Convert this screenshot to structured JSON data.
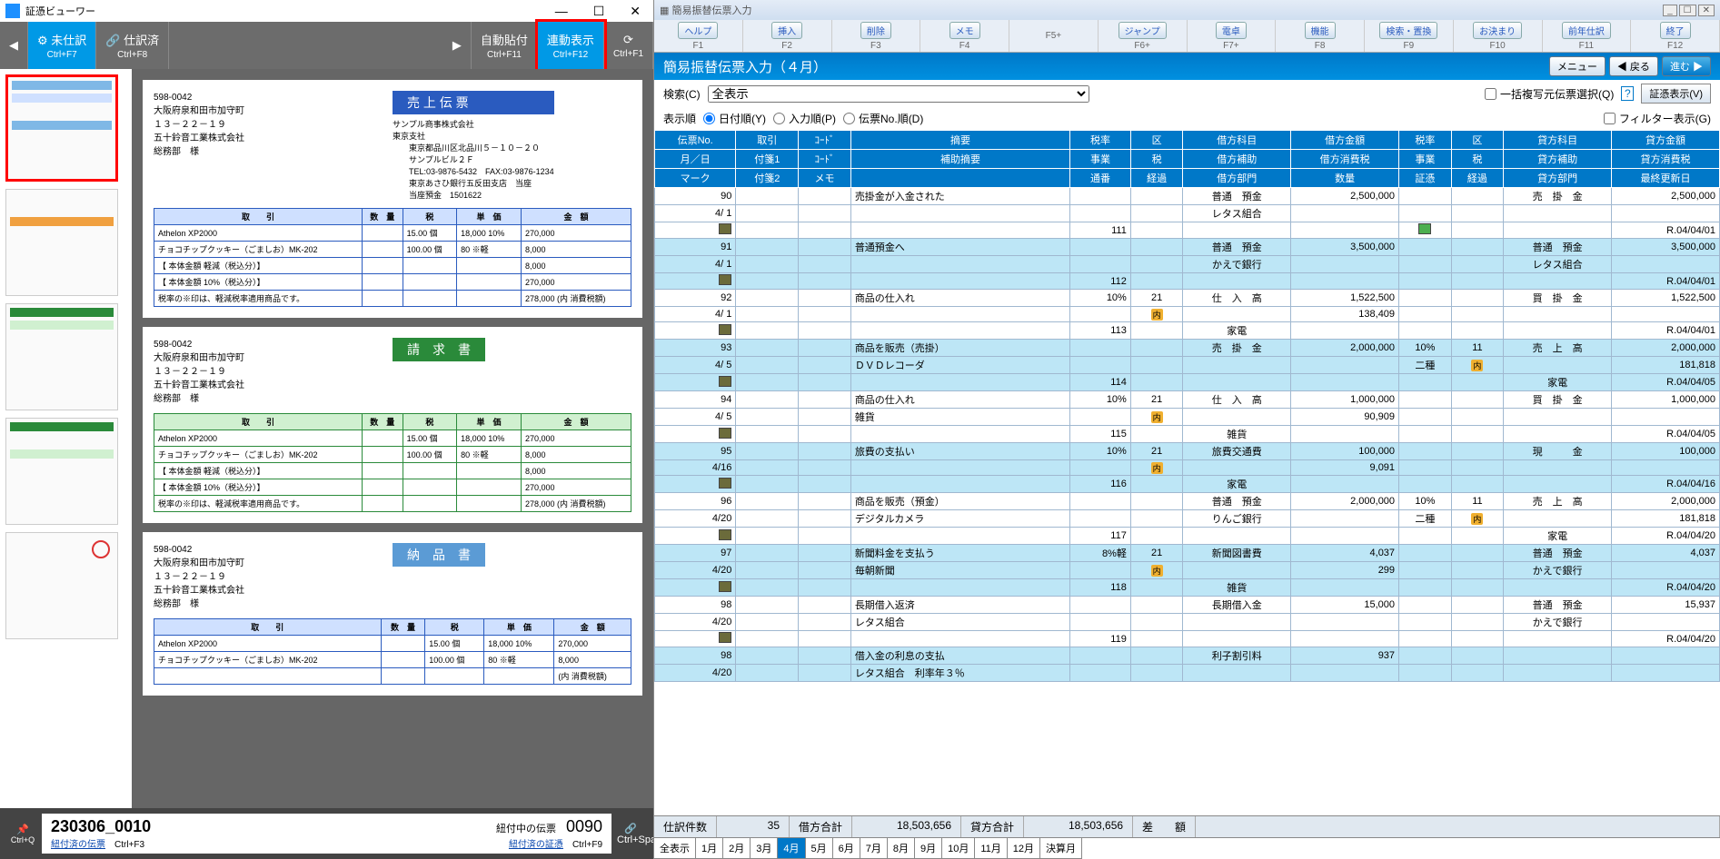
{
  "viewer": {
    "title": "証憑ビューワー",
    "tabs": {
      "unposted": "未仕訳",
      "unposted_key": "Ctrl+F7",
      "posted": "仕訳済",
      "posted_key": "Ctrl+F8"
    },
    "tools": {
      "autopaste": "自動貼付",
      "autopaste_key": "Ctrl+F11",
      "linked": "連動表示",
      "linked_key": "Ctrl+F12",
      "refresh": "⟳",
      "refresh_key": "Ctrl+F1"
    },
    "docs": [
      {
        "title": "売 上 伝 票",
        "color": "blue",
        "zip": "598-0042",
        "addr": "大阪府泉和田市加守町\n１３－２２－１９\n五十鈴音工業株式会社\n総務部　様",
        "from": "サンプル商事株式会社\n東京支社\n　　東京都品川区北品川５－１０－２０\n　　サンプルビル２Ｆ\n　　TEL:03-9876-5432　FAX:03-9876-1234\n　　東京あさひ銀行五反田支店　当座\n　　当座預金　1501622",
        "rows": [
          [
            "Athelon XP2000",
            "",
            "15.00 個",
            "18,000 10%",
            "270,000"
          ],
          [
            "チョコチップクッキー（ごましお）MK-202",
            "",
            "100.00 個",
            "80 ※軽",
            "8,000"
          ],
          [
            "【 本体金額 軽減（税込分）】",
            "",
            "",
            "",
            "8,000"
          ],
          [
            "【 本体金額 10%（税込分）】",
            "",
            "",
            "",
            "270,000"
          ],
          [
            "税率の※印は、軽減税率適用商品です。",
            "",
            "",
            "",
            "278,000 (内 消費税額)"
          ]
        ]
      },
      {
        "title": "請　求　書",
        "color": "green",
        "zip": "598-0042",
        "addr": "大阪府泉和田市加守町\n１３－２２－１９\n五十鈴音工業株式会社\n総務部　様",
        "rows": [
          [
            "Athelon XP2000",
            "",
            "15.00 個",
            "18,000 10%",
            "270,000"
          ],
          [
            "チョコチップクッキー（ごましお）MK-202",
            "",
            "100.00 個",
            "80 ※軽",
            "8,000"
          ],
          [
            "【 本体金額 軽減（税込分）】",
            "",
            "",
            "",
            "8,000"
          ],
          [
            "【 本体金額 10%（税込分）】",
            "",
            "",
            "",
            "270,000"
          ],
          [
            "税率の※印は、軽減税率適用商品です。",
            "",
            "",
            "",
            "278,000 (内 消費税額)"
          ]
        ]
      },
      {
        "title": "納　品　書",
        "color": "blue2",
        "zip": "598-0042",
        "addr": "大阪府泉和田市加守町\n１３－２２－１９\n五十鈴音工業株式会社\n総務部　様",
        "rows": [
          [
            "Athelon XP2000",
            "",
            "15.00 個",
            "18,000 10%",
            "270,000"
          ],
          [
            "チョコチップクッキー（ごましお）MK-202",
            "",
            "100.00 個",
            "80 ※軽",
            "8,000"
          ],
          [
            "",
            "",
            "",
            "",
            "(内 消費税額)"
          ]
        ]
      }
    ],
    "status": {
      "file": "230306_0010",
      "label_pending": "紐付中の伝票",
      "num": "0090",
      "link1": "紐付済の伝票",
      "link1_key": "Ctrl+F3",
      "link2": "紐付済の証憑",
      "link2_key": "Ctrl+F9",
      "pin": "📌",
      "pin_key": "Ctrl+Q",
      "chain": "🔗",
      "chain_key": "Ctrl+Space"
    }
  },
  "entry": {
    "title": "簡易振替伝票入力",
    "fkeys": [
      [
        "ヘルプ",
        "F1"
      ],
      [
        "挿入",
        "F2"
      ],
      [
        "削除",
        "F3"
      ],
      [
        "メモ",
        "F4"
      ],
      [
        "",
        "F5+"
      ],
      [
        "ジャンプ",
        "F6+"
      ],
      [
        "電卓",
        "F7+"
      ],
      [
        "機能",
        "F8"
      ],
      [
        "検索・置換",
        "F9"
      ],
      [
        "お決まり",
        "F10"
      ],
      [
        "前年仕訳",
        "F11"
      ],
      [
        "終了",
        "F12"
      ]
    ],
    "header": "簡易振替伝票入力（４月）",
    "nav": {
      "menu": "メニュー",
      "back": "◀ 戻る",
      "fwd": "進む ▶"
    },
    "search": {
      "label": "検索(C)",
      "value": "全表示",
      "multi": "一括複写元伝票選択(Q)",
      "show": "証憑表示(V)"
    },
    "order": {
      "label": "表示順",
      "opts": [
        "日付順(Y)",
        "入力順(P)",
        "伝票No.順(D)"
      ],
      "filter": "フィルター表示(G)"
    },
    "cols": [
      [
        "伝票No.",
        "取引",
        "ｺｰﾄﾞ",
        "摘要",
        "税率",
        "区",
        "借方科目",
        "借方金額",
        "税率",
        "区",
        "貸方科目",
        "貸方金額"
      ],
      [
        "月／日",
        "付箋1",
        "ｺｰﾄﾞ",
        "補助摘要",
        "事業",
        "税",
        "借方補助",
        "借方消費税",
        "事業",
        "税",
        "貸方補助",
        "貸方消費税"
      ],
      [
        "マーク",
        "付箋2",
        "メモ",
        "",
        "通番",
        "経過",
        "借方部門",
        "数量",
        "証憑",
        "経過",
        "貸方部門",
        "最終更新日"
      ]
    ],
    "rows": [
      {
        "c": "white",
        "no": "90",
        "memo": "売掛金が入金された",
        "dr_sub": "普通　預金",
        "dr_amt": "2,500,000",
        "cr_sub": "売　掛　金",
        "cr_amt": "2,500,000"
      },
      {
        "c": "white",
        "no": "4/ 1",
        "memo": "",
        "dr_sub": "レタス組合"
      },
      {
        "c": "white",
        "mark": "e",
        "seq": "111",
        "badge": "gr",
        "upd": "R.04/04/01"
      },
      {
        "c": "cyan",
        "no": "91",
        "memo": "普通預金へ",
        "dr_sub": "普通　預金",
        "dr_amt": "3,500,000",
        "cr_sub": "普通　預金",
        "cr_amt": "3,500,000"
      },
      {
        "c": "cyan",
        "no": "4/ 1",
        "dr_sub": "かえで銀行",
        "cr_sub": "レタス組合"
      },
      {
        "c": "cyan",
        "mark": "e",
        "seq": "112",
        "upd": "R.04/04/01"
      },
      {
        "c": "white",
        "no": "92",
        "memo": "商品の仕入れ",
        "rate": "10%",
        "kubun": "21",
        "dr_sub": "仕　入　高",
        "dr_amt": "1,522,500",
        "cr_sub": "買　掛　金",
        "cr_amt": "1,522,500"
      },
      {
        "c": "white",
        "no": "4/ 1",
        "nai": "内",
        "dr_amt": "138,409"
      },
      {
        "c": "white",
        "mark": "e",
        "seq": "113",
        "dr_sub": "家電",
        "upd": "R.04/04/01"
      },
      {
        "c": "cyan",
        "no": "93",
        "memo": "商品を販売（売掛）",
        "dr_sub": "売　掛　金",
        "dr_amt": "2,000,000",
        "cr_rate": "10%",
        "cr_kubun": "11",
        "cr_sub": "売　上　高",
        "cr_amt": "2,000,000"
      },
      {
        "c": "cyan",
        "no": "4/ 5",
        "memo": "ＤＶＤレコーダ",
        "cr_jig": "二種",
        "cr_nai": "内",
        "cr_amt": "181,818"
      },
      {
        "c": "cyan",
        "mark": "e",
        "seq": "114",
        "cr_sub": "家電",
        "upd": "R.04/04/05"
      },
      {
        "c": "white",
        "no": "94",
        "memo": "商品の仕入れ",
        "rate": "10%",
        "kubun": "21",
        "dr_sub": "仕　入　高",
        "dr_amt": "1,000,000",
        "cr_sub": "買　掛　金",
        "cr_amt": "1,000,000"
      },
      {
        "c": "white",
        "no": "4/ 5",
        "memo": "雑貨",
        "nai": "内",
        "dr_amt": "90,909"
      },
      {
        "c": "white",
        "mark": "e",
        "seq": "115",
        "dr_sub": "雑貨",
        "upd": "R.04/04/05"
      },
      {
        "c": "cyan",
        "no": "95",
        "memo": "旅費の支払い",
        "rate": "10%",
        "kubun": "21",
        "dr_sub": "旅費交通費",
        "dr_amt": "100,000",
        "cr_sub": "現　　　金",
        "cr_amt": "100,000"
      },
      {
        "c": "cyan",
        "no": "4/16",
        "nai": "内",
        "dr_amt": "9,091"
      },
      {
        "c": "cyan",
        "mark": "e",
        "seq": "116",
        "dr_sub": "家電",
        "upd": "R.04/04/16"
      },
      {
        "c": "white",
        "no": "96",
        "memo": "商品を販売（預金）",
        "dr_sub": "普通　預金",
        "dr_amt": "2,000,000",
        "cr_rate": "10%",
        "cr_kubun": "11",
        "cr_sub": "売　上　高",
        "cr_amt": "2,000,000"
      },
      {
        "c": "white",
        "no": "4/20",
        "memo": "デジタルカメラ",
        "dr_sub": "りんご銀行",
        "cr_jig": "二種",
        "cr_nai": "内",
        "cr_amt": "181,818"
      },
      {
        "c": "white",
        "mark": "e",
        "seq": "117",
        "cr_sub": "家電",
        "upd": "R.04/04/20"
      },
      {
        "c": "cyan",
        "no": "97",
        "memo": "新聞料金を支払う",
        "rate": "8%軽",
        "kubun": "21",
        "dr_sub": "新聞図書費",
        "dr_amt": "4,037",
        "cr_sub": "普通　預金",
        "cr_amt": "4,037"
      },
      {
        "c": "cyan",
        "no": "4/20",
        "memo": "毎朝新聞",
        "nai": "内",
        "dr_amt": "299",
        "cr_sub": "かえで銀行"
      },
      {
        "c": "cyan",
        "mark": "e",
        "seq": "118",
        "dr_sub": "雑貨",
        "upd": "R.04/04/20"
      },
      {
        "c": "white",
        "no": "98",
        "memo": "長期借入返済",
        "dr_sub": "長期借入金",
        "dr_amt": "15,000",
        "cr_sub": "普通　預金",
        "cr_amt": "15,937"
      },
      {
        "c": "white",
        "no": "4/20",
        "memo": "レタス組合",
        "cr_sub": "かえで銀行"
      },
      {
        "c": "white",
        "mark": "e",
        "seq": "119",
        "upd": "R.04/04/20"
      },
      {
        "c": "cyan",
        "no": "98",
        "memo": "借入金の利息の支払",
        "dr_sub": "利子割引料",
        "dr_amt": "937"
      },
      {
        "c": "cyan",
        "no": "4/20",
        "memo": "レタス組合　利率年３％"
      }
    ],
    "summary": {
      "count_lbl": "仕訳件数",
      "count": "35",
      "dr_lbl": "借方合計",
      "dr": "18,503,656",
      "cr_lbl": "貸方合計",
      "cr": "18,503,656",
      "diff_lbl": "差　　額",
      "diff": ""
    },
    "months": [
      "全表示",
      "1月",
      "2月",
      "3月",
      "4月",
      "5月",
      "6月",
      "7月",
      "8月",
      "9月",
      "10月",
      "11月",
      "12月",
      "決算月"
    ],
    "month_sel": 4
  }
}
